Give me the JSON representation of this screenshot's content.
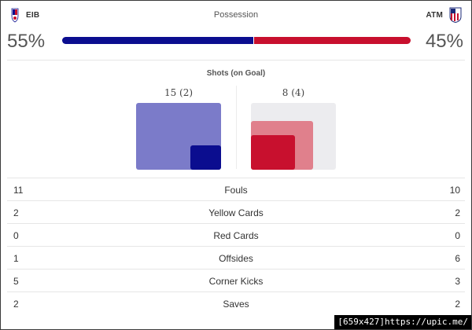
{
  "header": {
    "title": "Possession",
    "home": {
      "abbr": "EIB",
      "crest_icon": "eibar-crest-icon",
      "possession": "55%",
      "possession_value": 55
    },
    "away": {
      "abbr": "ATM",
      "crest_icon": "atletico-crest-icon",
      "possession": "45%",
      "possession_value": 45
    }
  },
  "colors": {
    "home": "#0b0d8f",
    "away": "#c8102e",
    "home_light": "#7b7bc9",
    "away_light": "#e0808c"
  },
  "shots": {
    "title": "Shots (on Goal)",
    "home": {
      "label": "15 (2)",
      "total": 15,
      "on_goal": 2
    },
    "away": {
      "label": "8 (4)",
      "total": 8,
      "on_goal": 4
    }
  },
  "stats": [
    {
      "name": "Fouls",
      "home": "11",
      "away": "10"
    },
    {
      "name": "Yellow Cards",
      "home": "2",
      "away": "2"
    },
    {
      "name": "Red Cards",
      "home": "0",
      "away": "0"
    },
    {
      "name": "Offsides",
      "home": "1",
      "away": "6"
    },
    {
      "name": "Corner Kicks",
      "home": "5",
      "away": "3"
    },
    {
      "name": "Saves",
      "home": "2",
      "away": "2"
    }
  ],
  "watermark": "[659x427]https://upic.me/"
}
